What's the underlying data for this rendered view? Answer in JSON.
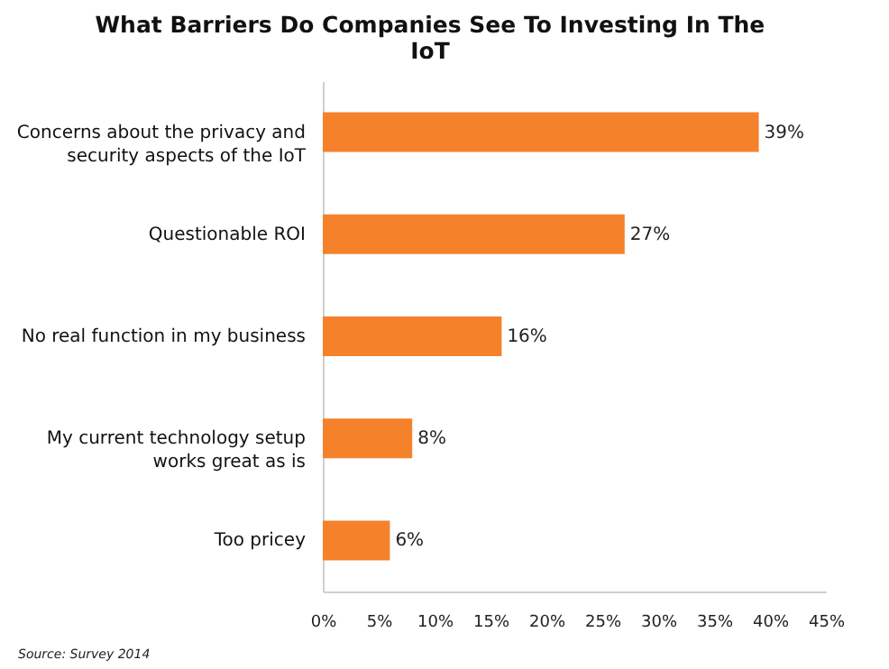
{
  "chart_data": {
    "type": "bar",
    "orientation": "horizontal",
    "title": "What Barriers Do Companies See To Investing In The IoT",
    "categories": [
      "Concerns about the privacy and security aspects of the IoT",
      "Questionable ROI",
      "No real function in my business",
      "My current technology setup works great as is",
      "Too pricey"
    ],
    "values": [
      39,
      27,
      16,
      8,
      6
    ],
    "color": "#f5812a",
    "value_labels": [
      "39%",
      "27%",
      "16%",
      "8%",
      "6%"
    ],
    "xlim": [
      0,
      45
    ],
    "xticks": [
      {
        "value": 0,
        "label": "0%"
      },
      {
        "value": 5,
        "label": "5%"
      },
      {
        "value": 10,
        "label": "10%"
      },
      {
        "value": 15,
        "label": "15%"
      },
      {
        "value": 20,
        "label": "20%"
      },
      {
        "value": 25,
        "label": "25%"
      },
      {
        "value": 30,
        "label": "30%"
      },
      {
        "value": 35,
        "label": "35%"
      },
      {
        "value": 40,
        "label": "40%"
      },
      {
        "value": 45,
        "label": "45%"
      }
    ],
    "grid": false,
    "annotations": [
      "Source: Survey 2014"
    ]
  }
}
